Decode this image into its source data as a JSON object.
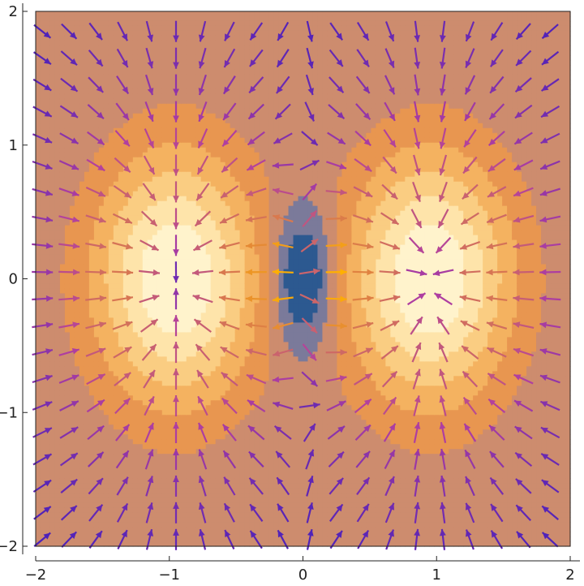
{
  "chart_data": {
    "type": "heatmap",
    "subtype": "contour plot with overlaid vector field",
    "title": "",
    "xlabel": "",
    "ylabel": "",
    "xlim": [
      -2,
      2
    ],
    "ylim": [
      -2,
      2
    ],
    "x_ticks": [
      -2,
      -1,
      0,
      1,
      2
    ],
    "y_ticks": [
      -2,
      -1,
      0,
      1,
      2
    ],
    "x_tick_labels": [
      "−2",
      "−1",
      "0",
      "1",
      "2"
    ],
    "y_tick_labels": [
      "−2",
      "−1",
      "0",
      "1",
      "2"
    ],
    "grid": false,
    "legend": "none",
    "field_peaks": [
      {
        "x": -0.95,
        "y": 0,
        "level": "max"
      },
      {
        "x": 0.95,
        "y": 0,
        "level": "max"
      }
    ],
    "field_minimum": {
      "x": 0,
      "y": 0,
      "shape": "ellipse",
      "rx": 0.22,
      "ry": 0.5
    },
    "contour_levels": 8,
    "vector_grid": {
      "x_from": -1.95,
      "x_to": 1.95,
      "y_from": -1.95,
      "y_to": 1.95,
      "step": 0.2
    },
    "colors": {
      "contour_low": "#2c5990",
      "contour_mid": "#7b7a9a",
      "contour_high": "#fff3cc",
      "arrow_low": "#3f1dbd",
      "arrow_mid": "#b13fa0",
      "arrow_high": "#ffb000",
      "frame": "#222222"
    }
  }
}
